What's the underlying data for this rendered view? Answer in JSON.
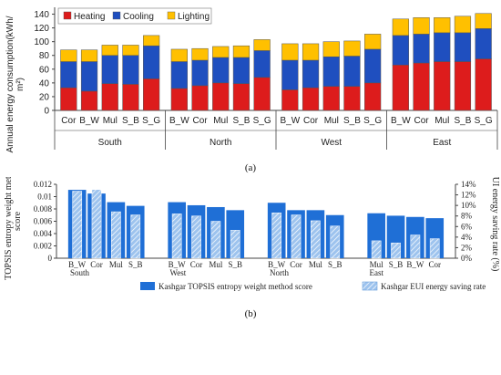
{
  "chart_data": [
    {
      "type": "bar",
      "stacked": true,
      "panel_label": "(a)",
      "ylabel": "Annual energy consumption(kWh/m²)",
      "ylim": [
        0,
        150
      ],
      "yticks": [
        0,
        20,
        40,
        60,
        80,
        100,
        120,
        140
      ],
      "grid": false,
      "legend_position": "top-left",
      "colors": {
        "Heating": "#dd1c1c",
        "Cooling": "#1f4fbf",
        "Lighting": "#ffc000"
      },
      "groups": [
        {
          "name": "South",
          "categories": [
            "Cor",
            "B_W",
            "Mul",
            "S_B",
            "S_G"
          ],
          "series": [
            {
              "name": "Heating",
              "values": [
                33,
                28,
                39,
                38,
                46
              ]
            },
            {
              "name": "Cooling",
              "values": [
                38,
                43,
                41,
                42,
                48
              ]
            },
            {
              "name": "Lighting",
              "values": [
                17,
                17,
                15,
                15,
                15
              ]
            }
          ]
        },
        {
          "name": "North",
          "categories": [
            "B_W",
            "Cor",
            "Mul",
            "S_B",
            "S_G"
          ],
          "series": [
            {
              "name": "Heating",
              "values": [
                32,
                36,
                40,
                39,
                48
              ]
            },
            {
              "name": "Cooling",
              "values": [
                39,
                37,
                37,
                38,
                39
              ]
            },
            {
              "name": "Lighting",
              "values": [
                18,
                17,
                16,
                17,
                16
              ]
            }
          ]
        },
        {
          "name": "West",
          "categories": [
            "B_W",
            "Cor",
            "Mul",
            "S_B",
            "S_G"
          ],
          "series": [
            {
              "name": "Heating",
              "values": [
                30,
                33,
                35,
                35,
                40
              ]
            },
            {
              "name": "Cooling",
              "values": [
                43,
                40,
                43,
                44,
                49
              ]
            },
            {
              "name": "Lighting",
              "values": [
                24,
                24,
                22,
                22,
                22
              ]
            }
          ]
        },
        {
          "name": "East",
          "categories": [
            "B_W",
            "Cor",
            "Mul",
            "S_B",
            "S_G"
          ],
          "series": [
            {
              "name": "Heating",
              "values": [
                66,
                69,
                71,
                71,
                75
              ]
            },
            {
              "name": "Cooling",
              "values": [
                43,
                42,
                42,
                42,
                44
              ]
            },
            {
              "name": "Lighting",
              "values": [
                24,
                24,
                22,
                24,
                22
              ]
            }
          ]
        }
      ]
    },
    {
      "type": "bar",
      "panel_label": "(b)",
      "ylabel": "TOPSIS entropy weight method score",
      "y2label": "EUI energy saving rate (%)",
      "ylim": [
        0,
        0.012
      ],
      "yticks": [
        0,
        0.002,
        0.004,
        0.006,
        0.008,
        0.01,
        0.012
      ],
      "y2lim": [
        0,
        14
      ],
      "y2ticks": [
        0,
        2,
        4,
        6,
        8,
        10,
        12,
        14
      ],
      "grid": false,
      "legend_position": "bottom",
      "colors": {
        "score": "#1f6fd6",
        "rate": "#9dc3ee"
      },
      "series_names": [
        "Kashgar TOPSIS entropy weight method score",
        "Kashgar EUI energy saving rate"
      ],
      "groups": [
        {
          "name": "South",
          "categories": [
            "B_W",
            "Cor",
            "Mul",
            "S_B"
          ],
          "score": [
            0.0111,
            0.0105,
            0.0091,
            0.0085
          ],
          "rate": [
            12.7,
            13.0,
            8.8,
            8.2
          ]
        },
        {
          "name": "West",
          "categories": [
            "B_W",
            "Cor",
            "Mul",
            "S_B"
          ],
          "score": [
            0.0091,
            0.0086,
            0.0083,
            0.0078
          ],
          "rate": [
            8.4,
            8.0,
            7.0,
            5.3
          ]
        },
        {
          "name": "North",
          "categories": [
            "B_W",
            "Cor",
            "Mul",
            "S_B"
          ],
          "score": [
            0.009,
            0.0078,
            0.0078,
            0.007
          ],
          "rate": [
            8.6,
            8.2,
            7.1,
            6.1
          ]
        },
        {
          "name": "East",
          "categories": [
            "Mul",
            "S_B",
            "B_W",
            "Cor"
          ],
          "score": [
            0.0073,
            0.0069,
            0.0067,
            0.0065
          ],
          "rate": [
            3.3,
            2.9,
            4.4,
            3.7
          ]
        }
      ]
    }
  ]
}
